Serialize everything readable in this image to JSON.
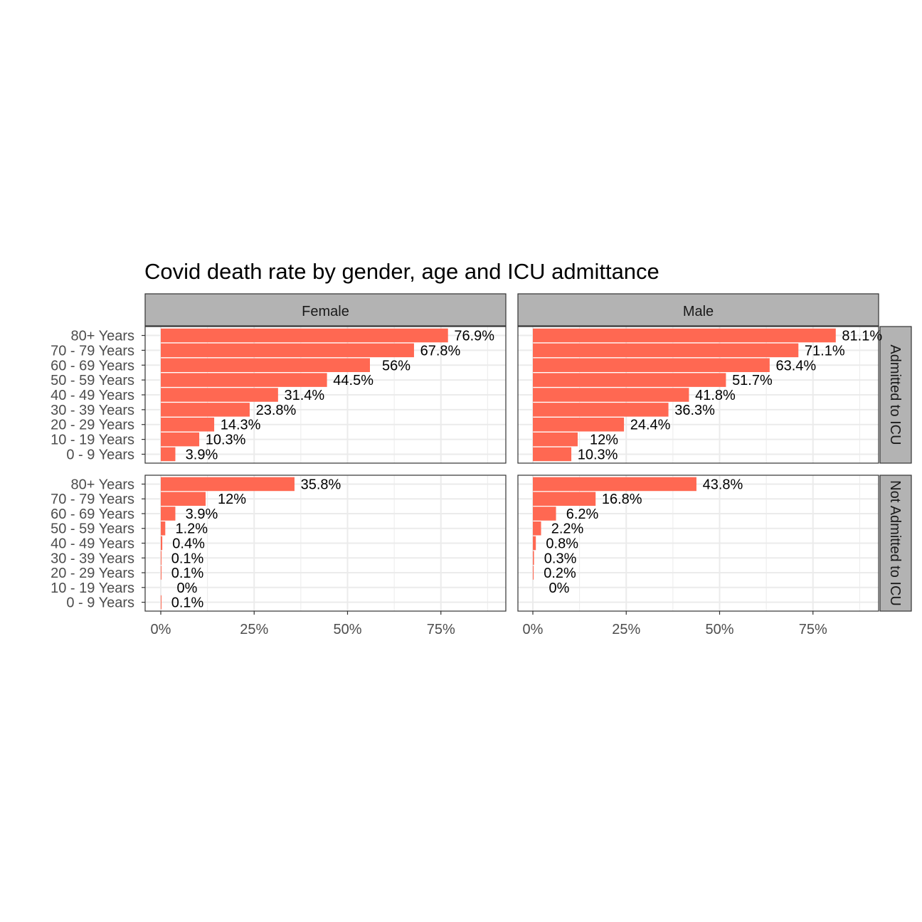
{
  "chart_data": {
    "type": "bar",
    "orientation": "horizontal",
    "title": "Covid death rate by gender, age and ICU admittance",
    "xlabel": "",
    "ylabel": "",
    "xlim": [
      0,
      91
    ],
    "x_ticks": [
      "0%",
      "25%",
      "50%",
      "75%"
    ],
    "x_tick_values": [
      0,
      25,
      50,
      75
    ],
    "grid": true,
    "bar_color": "#FF6852",
    "categories": [
      "80+ Years",
      "70 - 79 Years",
      "60 - 69 Years",
      "50 - 59 Years",
      "40 - 49 Years",
      "30 - 39 Years",
      "20 - 29 Years",
      "10 - 19 Years",
      "0 - 9 Years"
    ],
    "facet_columns": [
      "Female",
      "Male"
    ],
    "facet_rows": [
      "Admitted to ICU",
      "Not Admitted to ICU"
    ],
    "panels": [
      {
        "column": "Female",
        "row": "Admitted to ICU",
        "values": [
          76.9,
          67.8,
          56,
          44.5,
          31.4,
          23.8,
          14.3,
          10.3,
          3.9
        ],
        "labels": [
          "76.9%",
          "67.8%",
          "56%",
          "44.5%",
          "31.4%",
          "23.8%",
          "14.3%",
          "10.3%",
          "3.9%"
        ]
      },
      {
        "column": "Male",
        "row": "Admitted to ICU",
        "values": [
          81.1,
          71.1,
          63.4,
          51.7,
          41.8,
          36.3,
          24.4,
          12,
          10.3
        ],
        "labels": [
          "81.1%",
          "71.1%",
          "63.4%",
          "51.7%",
          "41.8%",
          "36.3%",
          "24.4%",
          "12%",
          "10.3%"
        ]
      },
      {
        "column": "Female",
        "row": "Not Admitted to ICU",
        "values": [
          35.8,
          12,
          3.9,
          1.2,
          0.4,
          0.1,
          0.1,
          0,
          0.1
        ],
        "labels": [
          "35.8%",
          "12%",
          "3.9%",
          "1.2%",
          "0.4%",
          "0.1%",
          "0.1%",
          "0%",
          "0.1%"
        ]
      },
      {
        "column": "Male",
        "row": "Not Admitted to ICU",
        "values": [
          43.8,
          16.8,
          6.2,
          2.2,
          0.8,
          0.3,
          0.2,
          0,
          0
        ],
        "labels": [
          "43.8%",
          "16.8%",
          "6.2%",
          "2.2%",
          "0.8%",
          "0.3%",
          "0.2%",
          "0%",
          ""
        ]
      }
    ]
  }
}
